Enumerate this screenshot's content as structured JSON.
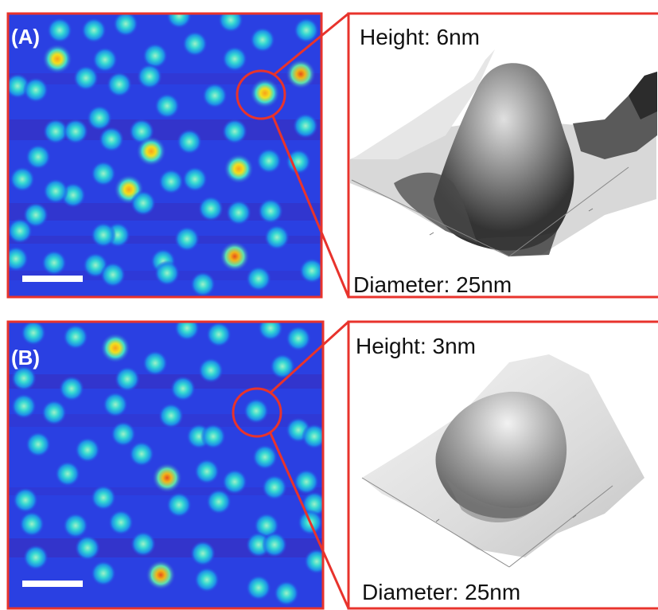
{
  "figure": {
    "panels": [
      {
        "label": "(A)",
        "height_caption": "Height: 6nm",
        "diameter_caption": "Diameter: 25nm"
      },
      {
        "label": "(B)",
        "height_caption": "Height: 3nm",
        "diameter_caption": "Diameter: 25nm"
      }
    ]
  },
  "colors": {
    "frame": "#e8332c",
    "background_blue": "#2a3fe0",
    "particle_cyan": "#31d2d6",
    "particle_yellow": "#f7d21a",
    "particle_orange": "#f07a14",
    "valley_purple": "#4e1a8a",
    "surface_gray": "#d4d4d4"
  }
}
